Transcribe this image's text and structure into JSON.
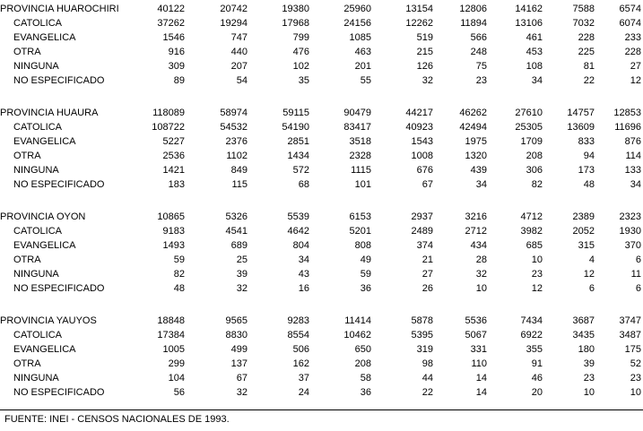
{
  "page": {
    "source_note": "FUENTE: INEI - CENSOS NACIONALES DE 1993."
  },
  "table": {
    "num_value_columns": 9,
    "sections": [
      {
        "label": "PROVINCIA HUAROCHIRI",
        "values": [
          40122,
          20742,
          19380,
          25960,
          13154,
          12806,
          14162,
          7588,
          6574
        ],
        "rows": [
          {
            "label": "CATOLICA",
            "values": [
              37262,
              19294,
              17968,
              24156,
              12262,
              11894,
              13106,
              7032,
              6074
            ]
          },
          {
            "label": "EVANGELICA",
            "values": [
              1546,
              747,
              799,
              1085,
              519,
              566,
              461,
              228,
              233
            ]
          },
          {
            "label": "OTRA",
            "values": [
              916,
              440,
              476,
              463,
              215,
              248,
              453,
              225,
              228
            ]
          },
          {
            "label": "NINGUNA",
            "values": [
              309,
              207,
              102,
              201,
              126,
              75,
              108,
              81,
              27
            ]
          },
          {
            "label": "NO ESPECIFICADO",
            "values": [
              89,
              54,
              35,
              55,
              32,
              23,
              34,
              22,
              12
            ]
          }
        ]
      },
      {
        "label": "PROVINCIA HUAURA",
        "values": [
          118089,
          58974,
          59115,
          90479,
          44217,
          46262,
          27610,
          14757,
          12853
        ],
        "rows": [
          {
            "label": "CATOLICA",
            "values": [
              108722,
              54532,
              54190,
              83417,
              40923,
              42494,
              25305,
              13609,
              11696
            ]
          },
          {
            "label": "EVANGELICA",
            "values": [
              5227,
              2376,
              2851,
              3518,
              1543,
              1975,
              1709,
              833,
              876
            ]
          },
          {
            "label": "OTRA",
            "values": [
              2536,
              1102,
              1434,
              2328,
              1008,
              1320,
              208,
              94,
              114
            ]
          },
          {
            "label": "NINGUNA",
            "values": [
              1421,
              849,
              572,
              1115,
              676,
              439,
              306,
              173,
              133
            ]
          },
          {
            "label": "NO ESPECIFICADO",
            "values": [
              183,
              115,
              68,
              101,
              67,
              34,
              82,
              48,
              34
            ]
          }
        ]
      },
      {
        "label": "PROVINCIA OYON",
        "values": [
          10865,
          5326,
          5539,
          6153,
          2937,
          3216,
          4712,
          2389,
          2323
        ],
        "rows": [
          {
            "label": "CATOLICA",
            "values": [
              9183,
              4541,
              4642,
              5201,
              2489,
              2712,
              3982,
              2052,
              1930
            ]
          },
          {
            "label": "EVANGELICA",
            "values": [
              1493,
              689,
              804,
              808,
              374,
              434,
              685,
              315,
              370
            ]
          },
          {
            "label": "OTRA",
            "values": [
              59,
              25,
              34,
              49,
              21,
              28,
              10,
              4,
              6
            ]
          },
          {
            "label": "NINGUNA",
            "values": [
              82,
              39,
              43,
              59,
              27,
              32,
              23,
              12,
              11
            ]
          },
          {
            "label": "NO ESPECIFICADO",
            "values": [
              48,
              32,
              16,
              36,
              26,
              10,
              12,
              6,
              6
            ]
          }
        ]
      },
      {
        "label": "PROVINCIA YAUYOS",
        "values": [
          18848,
          9565,
          9283,
          11414,
          5878,
          5536,
          7434,
          3687,
          3747
        ],
        "rows": [
          {
            "label": "CATOLICA",
            "values": [
              17384,
              8830,
              8554,
              10462,
              5395,
              5067,
              6922,
              3435,
              3487
            ]
          },
          {
            "label": "EVANGELICA",
            "values": [
              1005,
              499,
              506,
              650,
              319,
              331,
              355,
              180,
              175
            ]
          },
          {
            "label": "OTRA",
            "values": [
              299,
              137,
              162,
              208,
              98,
              110,
              91,
              39,
              52
            ]
          },
          {
            "label": "NINGUNA",
            "values": [
              104,
              67,
              37,
              58,
              44,
              14,
              46,
              23,
              23
            ]
          },
          {
            "label": "NO ESPECIFICADO",
            "values": [
              56,
              32,
              24,
              36,
              22,
              14,
              20,
              10,
              10
            ]
          }
        ]
      }
    ]
  }
}
